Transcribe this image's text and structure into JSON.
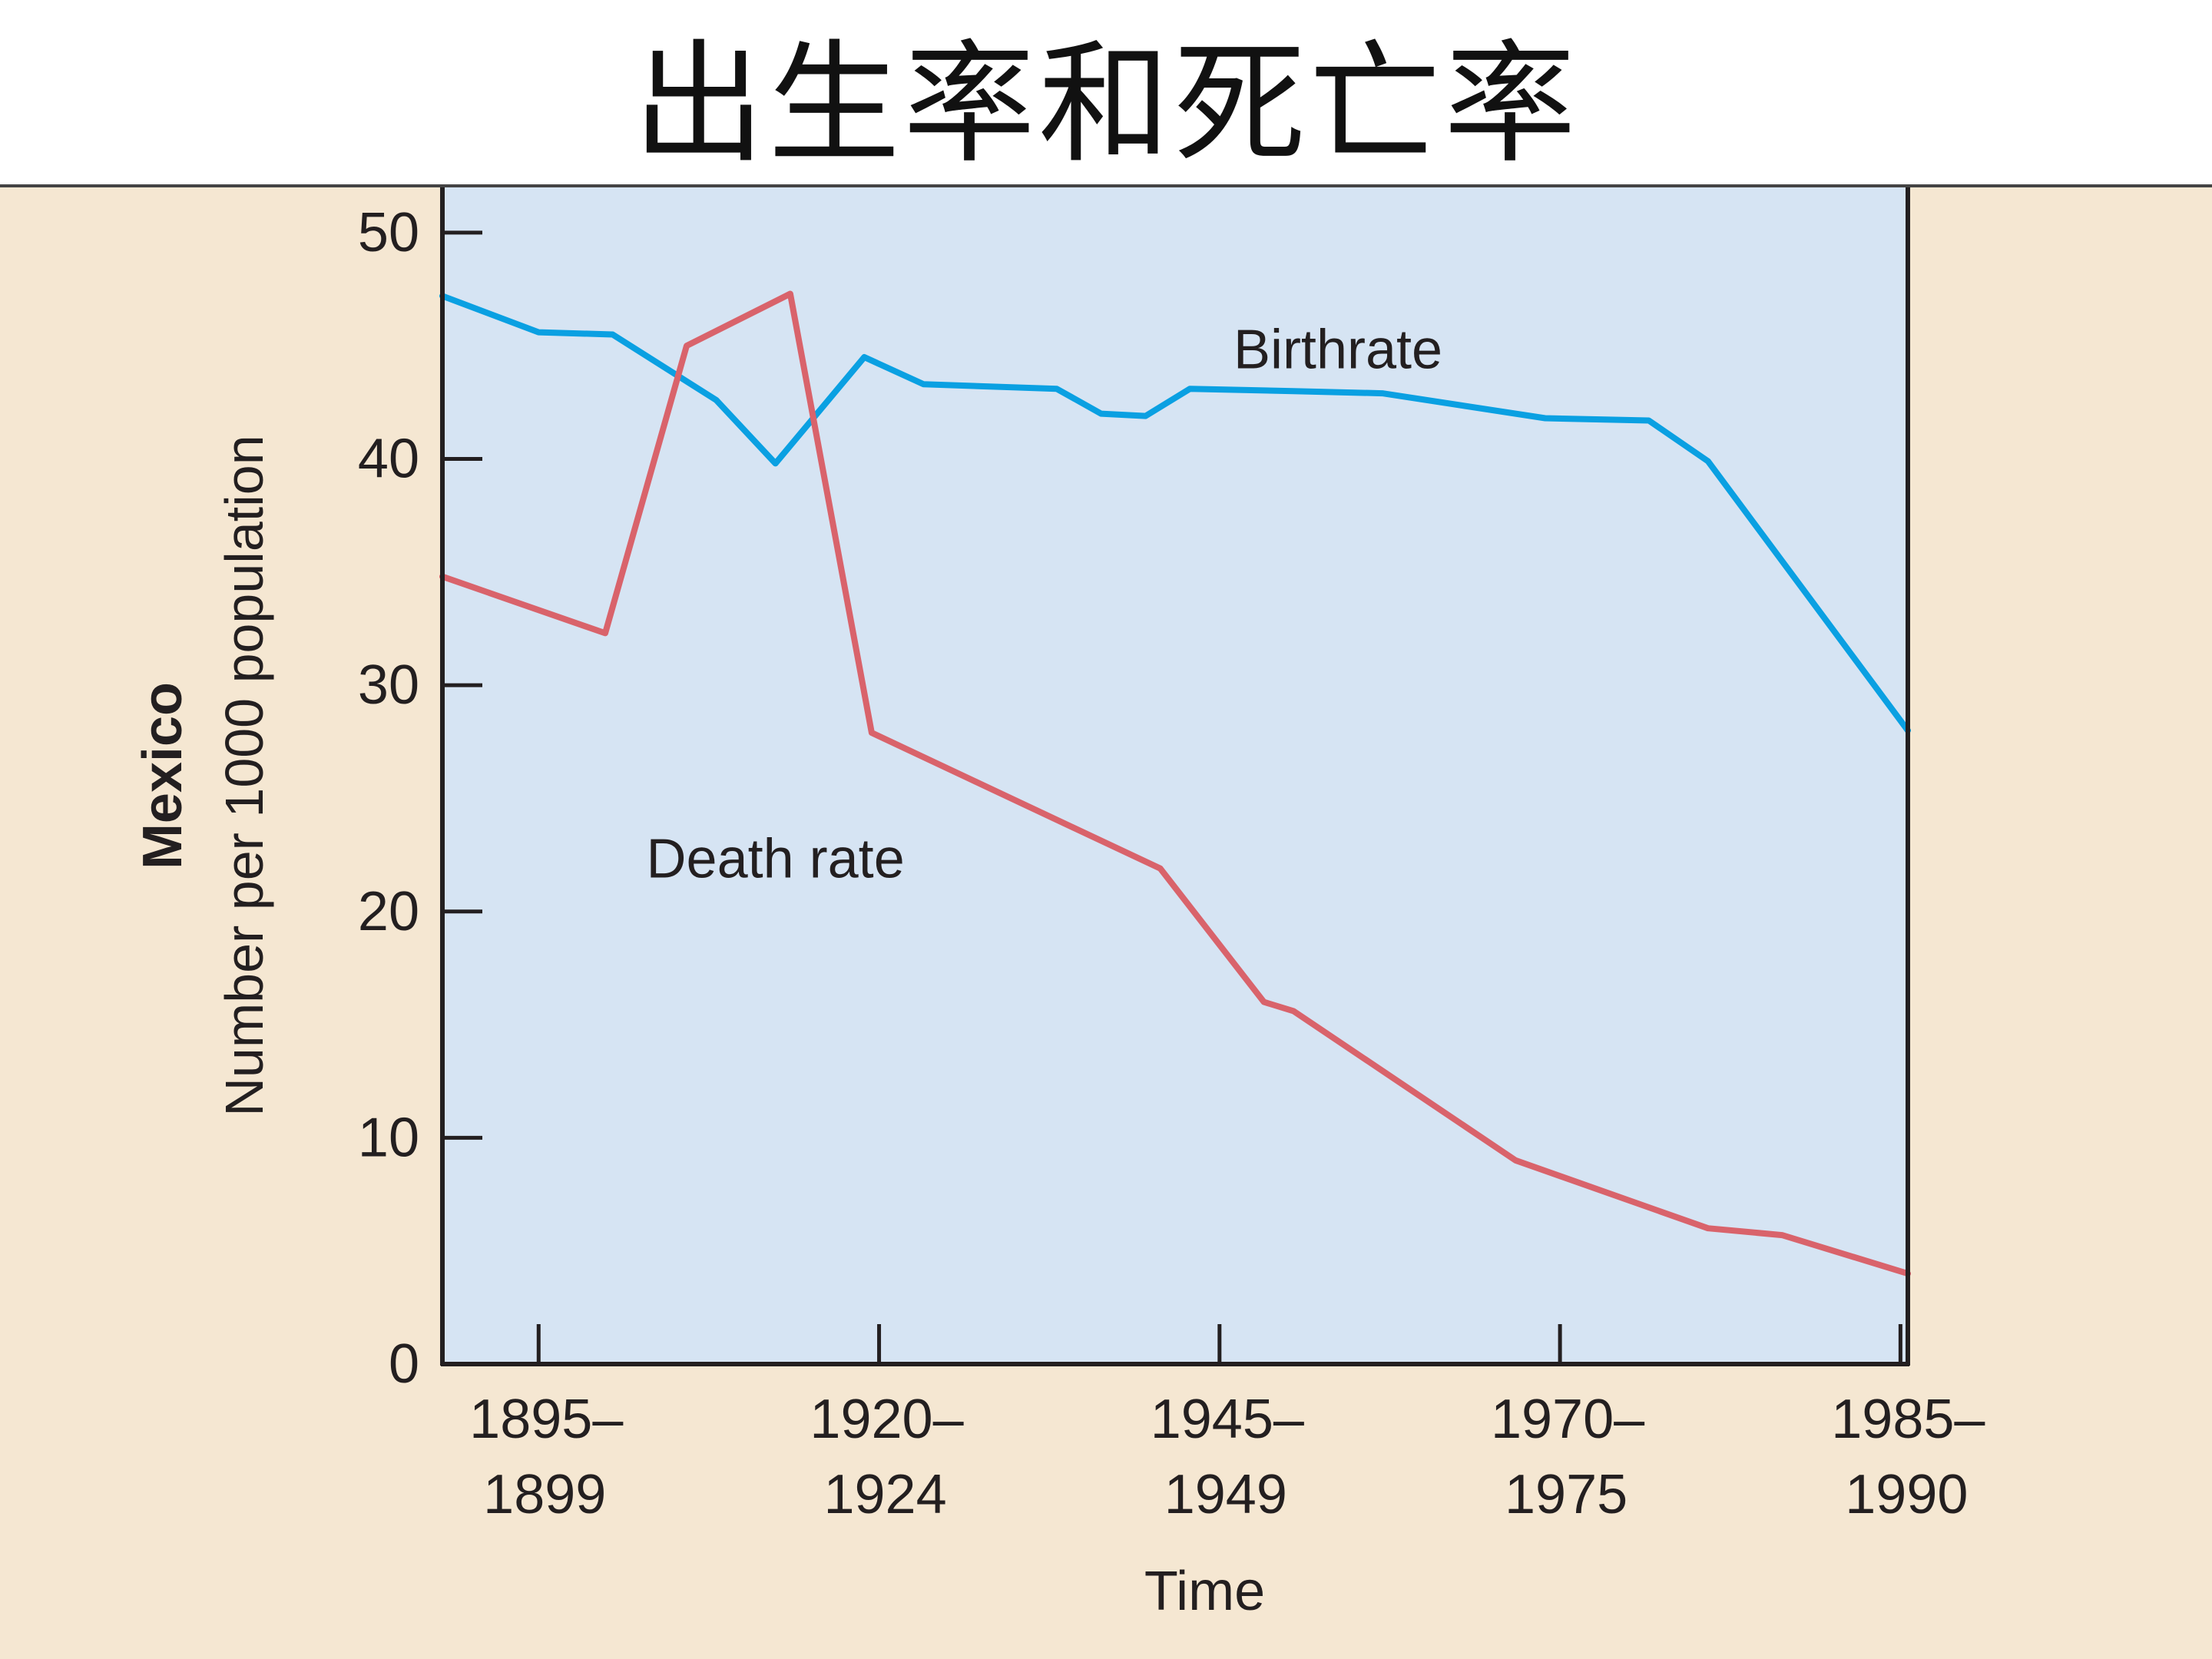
{
  "title": "出生率和死亡率",
  "colors": {
    "figure_background": "#f5e7d2",
    "plot_background": "#d6e4f3",
    "axis": "#231f20",
    "birthrate": "#0aa0e2",
    "death_rate": "#d9636b"
  },
  "chart_data": {
    "type": "line",
    "country_label": "Mexico",
    "ylabel": "Number per 1000 population",
    "xlabel": "Time",
    "ylim": [
      0,
      52
    ],
    "yticks": [
      0,
      10,
      20,
      30,
      40,
      50
    ],
    "xlim": [
      1892.5,
      1991.5
    ],
    "xticks": [
      {
        "x": 1899,
        "line1": "1895–",
        "line2": "1899"
      },
      {
        "x": 1922,
        "line1": "1920–",
        "line2": "1924"
      },
      {
        "x": 1945,
        "line1": "1945–",
        "line2": "1949"
      },
      {
        "x": 1968,
        "line1": "1970–",
        "line2": "1975"
      },
      {
        "x": 1991,
        "line1": "1985–",
        "line2": "1990"
      }
    ],
    "grid": false,
    "series": [
      {
        "name": "Birthrate",
        "color": "#0aa0e2",
        "label_at": {
          "x": 1953,
          "y": 44
        },
        "points": [
          [
            1892.5,
            47.2
          ],
          [
            1899,
            45.6
          ],
          [
            1904,
            45.5
          ],
          [
            1911,
            42.6
          ],
          [
            1915,
            39.8
          ],
          [
            1921,
            44.5
          ],
          [
            1925,
            43.3
          ],
          [
            1934,
            43.1
          ],
          [
            1937,
            42.0
          ],
          [
            1940,
            41.9
          ],
          [
            1943,
            43.1
          ],
          [
            1950,
            43.0
          ],
          [
            1956,
            42.9
          ],
          [
            1967,
            41.8
          ],
          [
            1974,
            41.7
          ],
          [
            1978,
            39.9
          ],
          [
            1991.5,
            28.0
          ]
        ]
      },
      {
        "name": "Death rate",
        "color": "#d9636b",
        "label_at": {
          "x": 1915,
          "y": 21.5
        },
        "points": [
          [
            1892.5,
            34.8
          ],
          [
            1903.5,
            32.3
          ],
          [
            1909,
            45.0
          ],
          [
            1916,
            47.3
          ],
          [
            1921.5,
            27.9
          ],
          [
            1941,
            21.9
          ],
          [
            1948,
            16.0
          ],
          [
            1950,
            15.6
          ],
          [
            1965,
            9.0
          ],
          [
            1978,
            6.0
          ],
          [
            1983,
            5.7
          ],
          [
            1991.5,
            4.0
          ]
        ]
      }
    ]
  }
}
